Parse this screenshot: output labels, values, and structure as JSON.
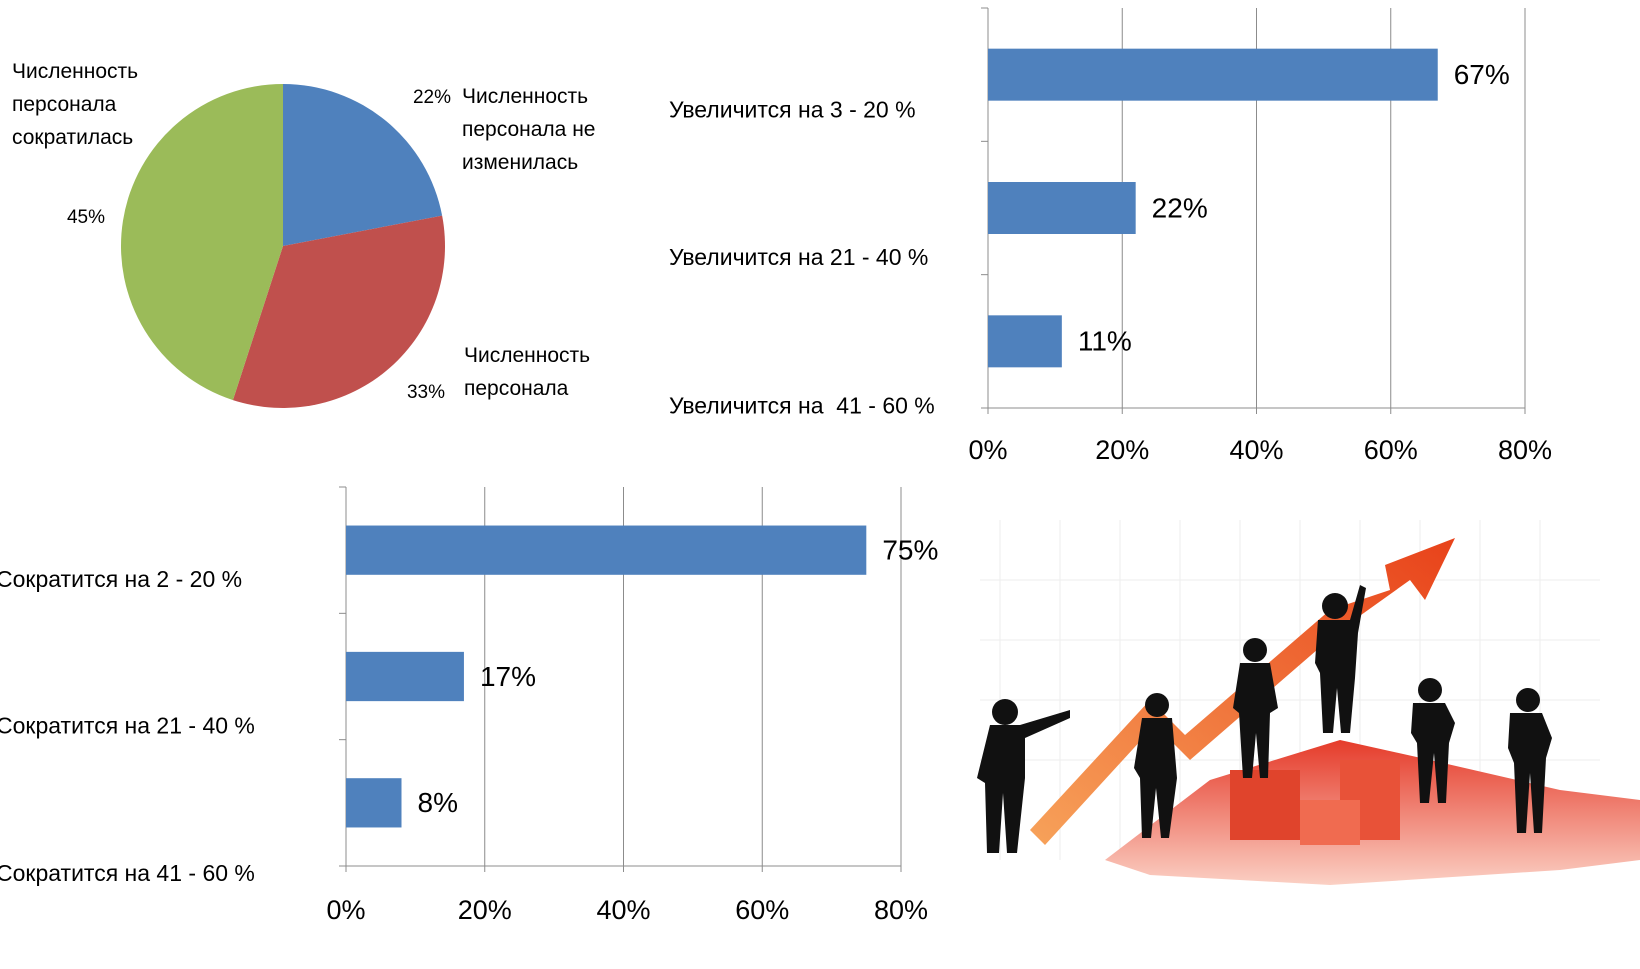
{
  "chart_data": [
    {
      "type": "pie",
      "categories": [
        "Численность персонала не изменилась",
        "Численность персонала",
        "Численность персонала сократилась"
      ],
      "values": [
        22,
        33,
        45
      ],
      "value_labels": [
        "22%",
        "33%",
        "45%"
      ],
      "colors": [
        "#4f81bd",
        "#c0504d",
        "#9bbb59"
      ]
    },
    {
      "type": "hbar",
      "categories": [
        "Увеличится на 3 - 20 %",
        "Увеличится на 21 - 40 %",
        "Увеличится на  41 - 60 %"
      ],
      "values": [
        67,
        22,
        11
      ],
      "value_labels": [
        "67%",
        "22%",
        "11%"
      ],
      "color": "#4f81bd",
      "xlim": [
        0,
        80
      ],
      "xticks": [
        {
          "value": 0,
          "label": "0%"
        },
        {
          "value": 20,
          "label": "20%"
        },
        {
          "value": 40,
          "label": "40%"
        },
        {
          "value": 60,
          "label": "60%"
        },
        {
          "value": 80,
          "label": "80%"
        }
      ],
      "grid": true
    },
    {
      "type": "hbar",
      "categories": [
        "Сократится на 2 - 20 %",
        "Сократится на 21 - 40 %",
        "Сократится на 41 - 60 %"
      ],
      "values": [
        75,
        17,
        8
      ],
      "value_labels": [
        "75%",
        "17%",
        "8%"
      ],
      "color": "#4f81bd",
      "xlim": [
        0,
        80
      ],
      "xticks": [
        {
          "value": 0,
          "label": "0%"
        },
        {
          "value": 20,
          "label": "20%"
        },
        {
          "value": 40,
          "label": "40%"
        },
        {
          "value": 60,
          "label": "60%"
        },
        {
          "value": 80,
          "label": "80%"
        }
      ],
      "grid": true
    }
  ]
}
